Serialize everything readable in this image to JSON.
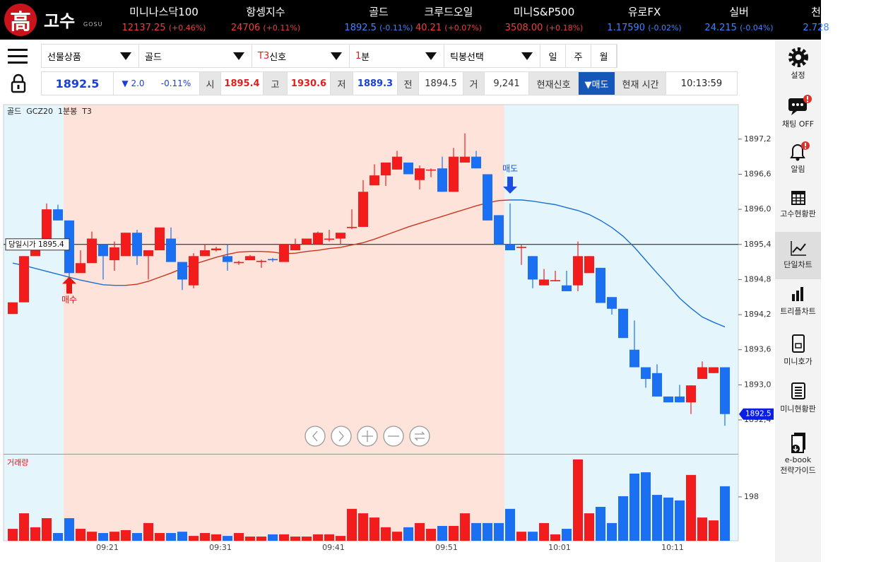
{
  "header": {
    "logo": "高",
    "brand": "고수",
    "brand_en": "GOSU",
    "tickers": [
      {
        "name": "미니나스닥100",
        "value": "12137.25",
        "change": "(+0.46%)",
        "dir": "up"
      },
      {
        "name": "항셍지수",
        "value": "24706",
        "change": "(+0.11%)",
        "dir": "up"
      },
      {
        "name": "골드",
        "value": "1892.5",
        "change": "(-0.11%)",
        "dir": "down"
      },
      {
        "name": "크루드오일",
        "value": "40.21",
        "change": "(+0.07%)",
        "dir": "up"
      },
      {
        "name": "미니S&P500",
        "value": "3508.00",
        "change": "(+0.18%)",
        "dir": "up"
      },
      {
        "name": "유로FX",
        "value": "1.17590",
        "change": "(-0.02%)",
        "dir": "down"
      },
      {
        "name": "실버",
        "value": "24.215",
        "change": "(-0.04%)",
        "dir": "down"
      },
      {
        "name": "천",
        "value": "2.728",
        "change": "",
        "dir": "down"
      }
    ]
  },
  "toolbar": {
    "dropdowns": [
      {
        "prefix": "",
        "text": "선물상품"
      },
      {
        "prefix": "",
        "text": "골드"
      },
      {
        "prefix": "T3",
        "text": "신호"
      },
      {
        "prefix": "1",
        "text": "분"
      },
      {
        "prefix": "",
        "text": "틱봉선택"
      }
    ],
    "periods": [
      "일",
      "주",
      "월"
    ]
  },
  "quote": {
    "price": "1892.5",
    "change": "▼ 2.0",
    "change_pct": "-0.11%",
    "open_label": "시",
    "open": "1895.4",
    "high_label": "고",
    "high": "1930.6",
    "low_label": "저",
    "low": "1889.3",
    "prev_label": "전",
    "prev": "1894.5",
    "volume_label": "거",
    "volume": "9,241",
    "signal_label": "현재신호",
    "signal": "▼매도",
    "time_label": "현재 시간",
    "time": "10:13:59"
  },
  "sidebar": {
    "items": [
      "설정",
      "채팅 OFF",
      "알림",
      "고수현황판",
      "단일차트",
      "트리플차트",
      "미니호가",
      "미니현황판"
    ],
    "ebook": [
      "e-book",
      "전략가이드"
    ]
  },
  "chart_data": {
    "type": "candlestick",
    "title": "골드  GCZ20  1분봉  T3",
    "x": [
      "09:13",
      "09:14",
      "09:15",
      "09:16",
      "09:17",
      "09:18",
      "09:19",
      "09:20",
      "09:21",
      "09:22",
      "09:23",
      "09:24",
      "09:25",
      "09:26",
      "09:27",
      "09:28",
      "09:29",
      "09:30",
      "09:31",
      "09:32",
      "09:33",
      "09:34",
      "09:35",
      "09:36",
      "09:37",
      "09:38",
      "09:39",
      "09:40",
      "09:41",
      "09:42",
      "09:43",
      "09:44",
      "09:45",
      "09:46",
      "09:47",
      "09:48",
      "09:49",
      "09:50",
      "09:51",
      "09:52",
      "09:53",
      "09:54",
      "09:55",
      "09:56",
      "09:57",
      "09:58",
      "09:59",
      "10:00",
      "10:01",
      "10:02",
      "10:03",
      "10:04",
      "10:05",
      "10:06",
      "10:07",
      "10:08",
      "10:09",
      "10:10",
      "10:11",
      "10:12",
      "10:13",
      "10:14",
      "10:15",
      "10:16"
    ],
    "open": [
      1894.21,
      1894.41,
      1895.2,
      1895.35,
      1896.0,
      1895.81,
      1894.91,
      1895.08,
      1895.4,
      1895.13,
      1895.2,
      1895.6,
      1895.2,
      1895.3,
      1895.5,
      1895.1,
      1894.7,
      1895.2,
      1895.3,
      1895.2,
      1895.08,
      1895.13,
      1895.1,
      1895.15,
      1895.1,
      1895.3,
      1895.4,
      1895.4,
      1895.48,
      1895.5,
      1895.68,
      1895.7,
      1896.41,
      1896.58,
      1896.68,
      1896.8,
      1896.5,
      1896.67,
      1896.7,
      1896.3,
      1896.8,
      1896.9,
      1896.6,
      1895.9,
      1895.4,
      1895.34,
      1895.2,
      1894.7,
      1894.77,
      1894.7,
      1894.7,
      1894.91,
      1895.0,
      1894.5,
      1894.3,
      1893.6,
      1893.3,
      1893.2,
      1892.8,
      1892.8,
      1892.7,
      1893.1,
      1893.2,
      1893.3
    ],
    "high": [
      1894.41,
      1895.2,
      1895.45,
      1896.1,
      1896.08,
      1895.81,
      1895.3,
      1895.62,
      1895.4,
      1895.45,
      1895.6,
      1895.65,
      1895.3,
      1895.69,
      1895.69,
      1895.1,
      1895.25,
      1895.4,
      1895.36,
      1895.4,
      1895.12,
      1895.22,
      1895.14,
      1895.17,
      1895.41,
      1895.5,
      1895.5,
      1895.62,
      1895.65,
      1895.6,
      1896.0,
      1896.5,
      1896.77,
      1896.8,
      1897.0,
      1896.8,
      1896.75,
      1896.7,
      1896.9,
      1897.05,
      1897.3,
      1897.0,
      1896.6,
      1895.9,
      1896.1,
      1895.4,
      1895.2,
      1894.98,
      1894.95,
      1894.95,
      1895.45,
      1895.2,
      1895.0,
      1894.5,
      1894.3,
      1894.1,
      1893.3,
      1893.35,
      1892.8,
      1893.0,
      1892.99,
      1893.4,
      1893.3,
      1893.3
    ],
    "low": [
      1894.21,
      1894.41,
      1895.2,
      1895.35,
      1895.81,
      1894.8,
      1894.91,
      1895.08,
      1894.8,
      1894.95,
      1895.2,
      1895.05,
      1894.8,
      1895.3,
      1895.1,
      1894.62,
      1894.65,
      1895.2,
      1895.28,
      1894.95,
      1895.05,
      1895.13,
      1895.0,
      1895.1,
      1895.1,
      1895.3,
      1895.4,
      1895.4,
      1895.45,
      1895.4,
      1895.66,
      1895.7,
      1896.41,
      1896.4,
      1896.68,
      1896.6,
      1896.34,
      1896.55,
      1896.3,
      1896.3,
      1896.8,
      1896.7,
      1895.81,
      1895.4,
      1895.3,
      1895.05,
      1894.65,
      1894.7,
      1894.77,
      1894.6,
      1894.6,
      1894.91,
      1894.4,
      1894.2,
      1893.8,
      1893.3,
      1892.95,
      1892.8,
      1892.7,
      1892.7,
      1892.5,
      1893.1,
      1893.2,
      1892.3
    ],
    "close": [
      1894.41,
      1895.2,
      1895.35,
      1896.0,
      1895.81,
      1894.91,
      1895.08,
      1895.5,
      1895.2,
      1895.35,
      1895.6,
      1895.2,
      1895.3,
      1895.69,
      1895.1,
      1894.8,
      1895.2,
      1895.3,
      1895.33,
      1895.1,
      1895.1,
      1895.2,
      1895.12,
      1895.13,
      1895.41,
      1895.4,
      1895.5,
      1895.6,
      1895.5,
      1895.6,
      1895.7,
      1896.3,
      1896.58,
      1896.8,
      1896.9,
      1896.6,
      1896.7,
      1896.68,
      1896.3,
      1896.9,
      1896.9,
      1896.7,
      1895.81,
      1895.4,
      1895.3,
      1895.36,
      1894.8,
      1894.8,
      1894.79,
      1894.6,
      1895.2,
      1895.2,
      1894.4,
      1894.3,
      1893.8,
      1893.3,
      1893.1,
      1892.8,
      1892.7,
      1892.7,
      1892.99,
      1893.3,
      1893.3,
      1892.5
    ],
    "up_color": "#f21c1c",
    "down_color": "#1a6ff2",
    "ylim": [
      1891.82,
      1897.79
    ],
    "yticks": [
      {
        "value": 1897.2,
        "label": "1897,2"
      },
      {
        "value": 1896.6,
        "label": "1896,6"
      },
      {
        "value": 1896.0,
        "label": "1896,0"
      },
      {
        "value": 1895.4,
        "label": "1895,4"
      },
      {
        "value": 1894.8,
        "label": "1894,8"
      },
      {
        "value": 1894.2,
        "label": "1894,2"
      },
      {
        "value": 1893.6,
        "label": "1893,6"
      },
      {
        "value": 1893.0,
        "label": "1893,0"
      },
      {
        "value": 1892.4,
        "label": "1892,4"
      }
    ],
    "xticks": [
      "09:21",
      "09:31",
      "09:41",
      "09:51",
      "10:01",
      "10:11"
    ],
    "moving_averages": [
      {
        "color": "#1a6fd0",
        "values": [
          1895.08,
          1895.04,
          1894.99,
          1894.94,
          1894.89,
          1894.84,
          1894.79,
          1894.75,
          1894.71,
          1894.7,
          1894.7,
          null,
          null,
          null,
          null,
          null,
          null,
          null,
          null,
          null,
          null,
          null,
          null,
          null,
          null,
          null,
          null,
          null,
          null,
          null,
          null,
          null,
          null,
          null,
          null,
          null,
          null,
          null,
          null,
          null,
          null,
          null,
          null,
          null,
          1896.16,
          1896.16,
          1896.14,
          1896.11,
          1896.08,
          1896.03,
          1895.98,
          1895.91,
          1895.81,
          1895.69,
          1895.54,
          1895.35,
          1895.13,
          1894.91,
          1894.7,
          1894.48,
          1894.31,
          1894.16,
          1894.07,
          1893.99
        ]
      },
      {
        "color": "#c8371e",
        "values": [
          null,
          null,
          null,
          null,
          null,
          null,
          null,
          null,
          null,
          null,
          1894.7,
          1894.72,
          1894.77,
          1894.84,
          1894.91,
          1894.99,
          1895.06,
          1895.12,
          1895.18,
          1895.23,
          1895.27,
          1895.28,
          1895.28,
          1895.27,
          1895.24,
          1895.25,
          1895.28,
          1895.3,
          1895.33,
          1895.35,
          1895.39,
          1895.43,
          1895.49,
          1895.56,
          1895.63,
          1895.7,
          1895.76,
          1895.82,
          1895.88,
          1895.94,
          1896.0,
          1896.06,
          1896.11,
          1896.15,
          1896.16,
          null,
          null,
          null,
          null,
          null,
          null,
          null,
          null,
          null,
          null,
          null,
          null,
          null,
          null,
          null,
          null,
          null,
          null,
          null
        ]
      }
    ],
    "reference_line": {
      "label": "당일시가 1895.4",
      "value": 1895.4
    },
    "last_price": 1892.5,
    "last_price_color": "#0a1fe6",
    "base_zone_color": "#e4f6fc",
    "signals": [
      {
        "label": "매수",
        "x": "09:18",
        "position": "below",
        "color": "#e01818",
        "zone_color": "#fde3da"
      },
      {
        "label": "매도",
        "x": "09:57",
        "position": "above",
        "color": "#1a4fe0",
        "zone_color": "#e4f6fc"
      }
    ],
    "volume": {
      "title": "거래량",
      "values": [
        54,
        124,
        61,
        102,
        35,
        102,
        54,
        41,
        35,
        41,
        48,
        35,
        80,
        35,
        35,
        41,
        22,
        35,
        29,
        22,
        35,
        19,
        19,
        29,
        29,
        19,
        19,
        29,
        29,
        22,
        144,
        124,
        105,
        61,
        41,
        61,
        80,
        54,
        67,
        67,
        124,
        80,
        80,
        80,
        144,
        41,
        41,
        80,
        29,
        54,
        367,
        124,
        153,
        80,
        201,
        303,
        309,
        207,
        195,
        182,
        297,
        105,
        92,
        246
      ],
      "ylim": [
        0,
        389
      ],
      "yticks": [
        198
      ]
    }
  }
}
